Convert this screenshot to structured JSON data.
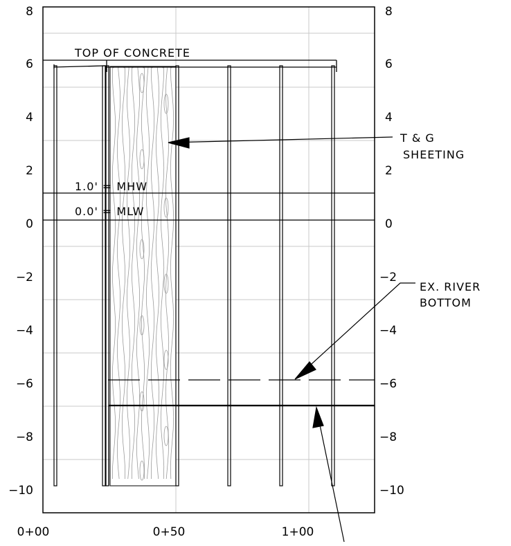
{
  "drawing": {
    "title": "",
    "y_ticks": [
      "8",
      "6",
      "4",
      "2",
      "0",
      "−2",
      "−4",
      "−6",
      "−8",
      "−10"
    ],
    "x_ticks": [
      "0+00",
      "0+50",
      "1+00"
    ],
    "y_range": [
      -11,
      8
    ],
    "x_range": [
      0,
      125
    ],
    "labels": {
      "top_of_concrete": "TOP OF CONCRETE",
      "mhw": "1.0' = MHW",
      "mlw": "0.0' = MLW",
      "tg_line1": "T & G",
      "tg_line2": "SHEETING",
      "river_line1": "EX. RIVER",
      "river_line2": "BOTTOM"
    },
    "levels": {
      "top_of_concrete_ft": 6,
      "mhw_ft": 1.0,
      "mlw_ft": 0.0,
      "ex_river_bottom_ft": -6,
      "proposed_bottom_ft": -7,
      "pile_tip_ft": -10,
      "sheeting_top_ft": 5.8
    },
    "colors": {
      "line": "#000000",
      "grid": "#c8c8c8",
      "wood": "#9a9a9a"
    }
  }
}
